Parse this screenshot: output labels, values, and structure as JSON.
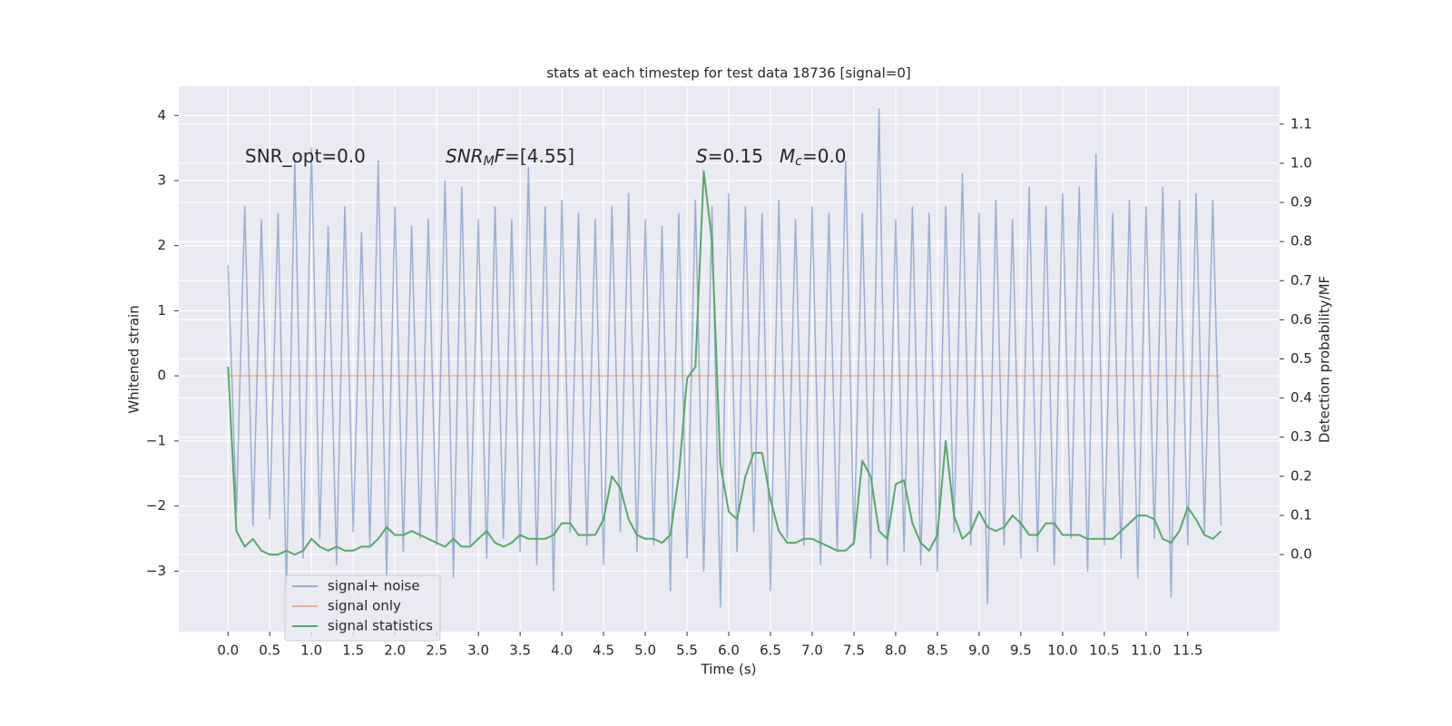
{
  "chart_data": {
    "type": "line",
    "title": "stats at each timestep for test data 18736 [signal=0]",
    "xlabel": "Time (s)",
    "ylabel": "Whitened strain",
    "y2label": "Detection probability/MF",
    "x": [
      0,
      0.1,
      0.2,
      0.3,
      0.4,
      0.5,
      0.6,
      0.7,
      0.8,
      0.9,
      1,
      1.1,
      1.2,
      1.3,
      1.4,
      1.5,
      1.6,
      1.7,
      1.8,
      1.9,
      2,
      2.1,
      2.2,
      2.3,
      2.4,
      2.5,
      2.6,
      2.7,
      2.8,
      2.9,
      3,
      3.1,
      3.2,
      3.3,
      3.4,
      3.5,
      3.6,
      3.7,
      3.8,
      3.9,
      4,
      4.1,
      4.2,
      4.3,
      4.4,
      4.5,
      4.6,
      4.7,
      4.8,
      4.9,
      5,
      5.1,
      5.2,
      5.3,
      5.4,
      5.5,
      5.6,
      5.7,
      5.8,
      5.9,
      6,
      6.1,
      6.2,
      6.3,
      6.4,
      6.5,
      6.6,
      6.7,
      6.8,
      6.9,
      7,
      7.1,
      7.2,
      7.3,
      7.4,
      7.5,
      7.6,
      7.7,
      7.8,
      7.9,
      8,
      8.1,
      8.2,
      8.3,
      8.4,
      8.5,
      8.6,
      8.7,
      8.8,
      8.9,
      9,
      9.1,
      9.2,
      9.3,
      9.4,
      9.5,
      9.6,
      9.7,
      9.8,
      9.9,
      10,
      10.1,
      10.2,
      10.3,
      10.4,
      10.5,
      10.6,
      10.7,
      10.8,
      10.9,
      11,
      11.1,
      11.2,
      11.3,
      11.4,
      11.5,
      11.6,
      11.7,
      11.8,
      11.9
    ],
    "series": [
      {
        "name": "signal+ noise",
        "color": "#4c72b0",
        "alpha": 0.5,
        "values": [
          1.7,
          -2.1,
          2.6,
          -2.3,
          2.4,
          -2.2,
          2.5,
          -3.3,
          3.3,
          -2.8,
          3.5,
          -2.5,
          2.3,
          -2.9,
          2.6,
          -2.4,
          2.2,
          -2.6,
          3.3,
          -3.1,
          2.6,
          -2.7,
          2.3,
          -2.5,
          2.4,
          -2.6,
          3.0,
          -3.1,
          2.9,
          -2.6,
          2.4,
          -2.8,
          2.6,
          -2.5,
          2.4,
          -2.7,
          3.2,
          -2.9,
          2.6,
          -3.3,
          2.7,
          -2.4,
          2.5,
          -2.6,
          2.4,
          -2.9,
          2.6,
          -2.4,
          2.8,
          -2.7,
          2.4,
          -2.6,
          2.3,
          -3.3,
          2.5,
          -2.8,
          2.7,
          -3.0,
          2.6,
          -3.55,
          2.8,
          -2.7,
          2.6,
          -2.4,
          2.5,
          -3.3,
          2.7,
          -2.5,
          2.4,
          -2.6,
          2.6,
          -2.9,
          2.5,
          -2.7,
          3.3,
          -2.6,
          2.5,
          -2.8,
          4.1,
          -2.9,
          2.4,
          -2.7,
          2.6,
          -2.9,
          2.5,
          -3.0,
          2.6,
          -2.4,
          3.1,
          -2.6,
          2.5,
          -3.5,
          2.7,
          -2.6,
          2.4,
          -2.8,
          2.9,
          -2.7,
          2.6,
          -2.9,
          2.8,
          -2.5,
          2.9,
          -3.0,
          3.4,
          -2.6,
          2.5,
          -2.8,
          2.7,
          -3.1,
          2.6,
          -2.5,
          2.9,
          -3.4,
          2.7,
          -2.6,
          2.8,
          -2.4,
          2.7,
          -2.3
        ]
      },
      {
        "name": "signal only",
        "color": "#dd8452",
        "alpha": 0.6,
        "values": [
          0,
          0,
          0,
          0,
          0,
          0,
          0,
          0,
          0,
          0,
          0,
          0,
          0,
          0,
          0,
          0,
          0,
          0,
          0,
          0,
          0,
          0,
          0,
          0,
          0,
          0,
          0,
          0,
          0,
          0,
          0,
          0,
          0,
          0,
          0,
          0,
          0,
          0,
          0,
          0,
          0,
          0,
          0,
          0,
          0,
          0,
          0,
          0,
          0,
          0,
          0,
          0,
          0,
          0,
          0,
          0,
          0,
          0,
          0,
          0,
          0,
          0,
          0,
          0,
          0,
          0,
          0,
          0,
          0,
          0,
          0,
          0,
          0,
          0,
          0,
          0,
          0,
          0,
          0,
          0,
          0,
          0,
          0,
          0,
          0,
          0,
          0,
          0,
          0,
          0,
          0,
          0,
          0,
          0,
          0,
          0,
          0,
          0,
          0,
          0,
          0,
          0,
          0,
          0,
          0,
          0,
          0,
          0,
          0,
          0,
          0,
          0,
          0,
          0,
          0,
          0,
          0,
          0,
          0,
          0
        ]
      },
      {
        "name": "signal statistics",
        "color": "#55a868",
        "alpha": 1,
        "axis": "y2",
        "values": [
          0.48,
          0.06,
          0.02,
          0.04,
          0.01,
          0.0,
          0.0,
          0.01,
          0.0,
          0.01,
          0.04,
          0.02,
          0.01,
          0.02,
          0.01,
          0.01,
          0.02,
          0.02,
          0.04,
          0.07,
          0.05,
          0.05,
          0.06,
          0.05,
          0.04,
          0.03,
          0.02,
          0.04,
          0.02,
          0.02,
          0.04,
          0.06,
          0.03,
          0.02,
          0.03,
          0.05,
          0.04,
          0.04,
          0.04,
          0.05,
          0.08,
          0.08,
          0.05,
          0.05,
          0.05,
          0.09,
          0.2,
          0.17,
          0.09,
          0.05,
          0.04,
          0.04,
          0.03,
          0.05,
          0.2,
          0.45,
          0.48,
          0.98,
          0.8,
          0.23,
          0.11,
          0.09,
          0.2,
          0.26,
          0.26,
          0.14,
          0.06,
          0.03,
          0.03,
          0.04,
          0.04,
          0.03,
          0.02,
          0.01,
          0.01,
          0.03,
          0.24,
          0.2,
          0.06,
          0.04,
          0.18,
          0.19,
          0.08,
          0.03,
          0.01,
          0.05,
          0.29,
          0.1,
          0.04,
          0.06,
          0.11,
          0.07,
          0.06,
          0.07,
          0.1,
          0.08,
          0.05,
          0.05,
          0.08,
          0.08,
          0.05,
          0.05,
          0.05,
          0.04,
          0.04,
          0.04,
          0.04,
          0.06,
          0.08,
          0.1,
          0.1,
          0.09,
          0.04,
          0.03,
          0.06,
          0.12,
          0.09,
          0.05,
          0.04,
          0.06
        ]
      }
    ],
    "xlim": [
      -0.59,
      12.6
    ],
    "xticks": [
      {
        "value": 0,
        "label": "0.0"
      },
      0.5,
      {
        "value": 1,
        "label": "1.0"
      },
      1.5,
      {
        "value": 2,
        "label": "2.0"
      },
      2.5,
      {
        "value": 3,
        "label": "3.0"
      },
      3.5,
      {
        "value": 4,
        "label": "4.0"
      },
      4.5,
      {
        "value": 5,
        "label": "5.0"
      },
      5.5,
      {
        "value": 6,
        "label": "6.0"
      },
      6.5,
      {
        "value": 7,
        "label": "7.0"
      },
      7.5,
      {
        "value": 8,
        "label": "8.0"
      },
      8.5,
      {
        "value": 9,
        "label": "9.0"
      },
      9.5,
      {
        "value": 10,
        "label": "10.0"
      },
      10.5,
      {
        "value": 11,
        "label": "11.0"
      },
      11.5
    ],
    "ylim": [
      -3.93,
      4.45
    ],
    "yticks": [
      {
        "value": -3,
        "label": "−3"
      },
      {
        "value": -2,
        "label": "−2"
      },
      {
        "value": -1,
        "label": "−1"
      },
      0,
      1,
      2,
      3,
      4
    ],
    "y2lim": [
      -0.197,
      1.197
    ],
    "y2ticks": [
      {
        "value": 0,
        "label": "0.0"
      },
      0.1,
      0.2,
      0.3,
      0.4,
      0.5,
      0.6,
      0.7,
      0.8,
      0.9,
      {
        "value": 1,
        "label": "1.0"
      },
      1.1
    ],
    "grid": true,
    "legend": "lower left",
    "annotations": [
      [
        {
          "text": "SNR_opt=0.0",
          "italic": false,
          "sub": false
        }
      ],
      [
        {
          "text": "SNR",
          "italic": true,
          "sub": false
        },
        {
          "text": "M",
          "italic": true,
          "sub": true
        },
        {
          "text": "F",
          "italic": true,
          "sub": false
        },
        {
          "text": "=[4.55]",
          "italic": false,
          "sub": false
        }
      ],
      [
        {
          "text": "S",
          "italic": true,
          "sub": false
        },
        {
          "text": "=0.15",
          "italic": false,
          "sub": false
        }
      ],
      [
        {
          "text": "M",
          "italic": true,
          "sub": false
        },
        {
          "text": "c",
          "italic": true,
          "sub": true
        },
        {
          "text": "=0.0",
          "italic": false,
          "sub": false
        }
      ]
    ]
  }
}
